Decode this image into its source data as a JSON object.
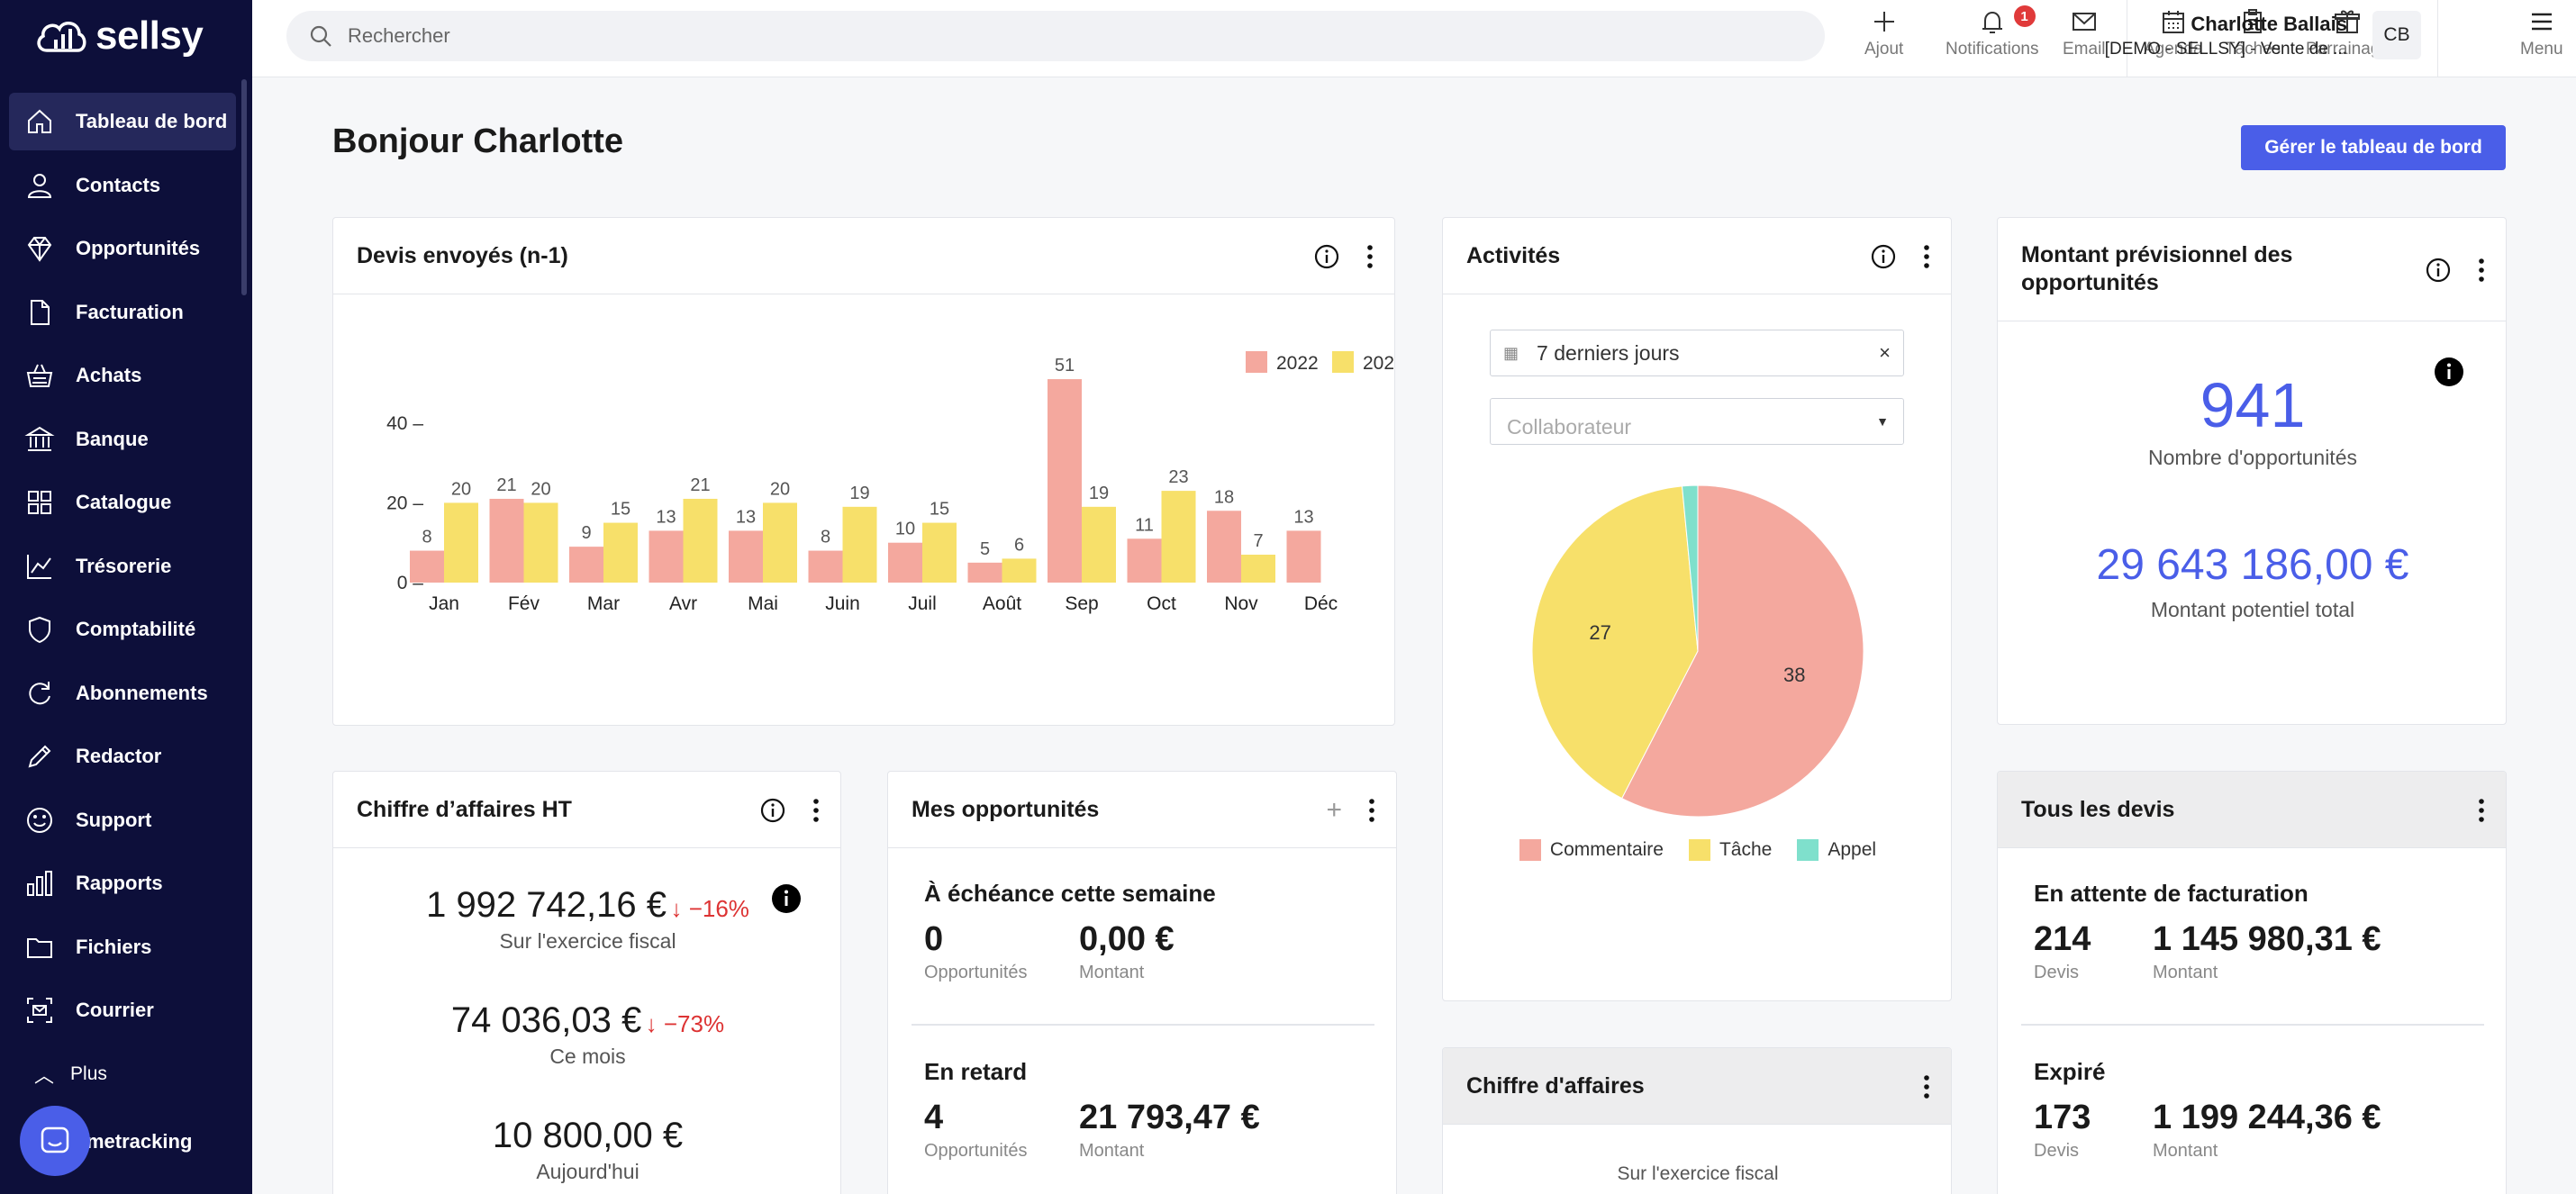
{
  "app": {
    "logo": "sellsy"
  },
  "sidebar": {
    "items": [
      {
        "label": "Tableau de bord",
        "icon": "home-icon",
        "active": true
      },
      {
        "label": "Contacts",
        "icon": "user-icon"
      },
      {
        "label": "Opportunités",
        "icon": "diamond-icon"
      },
      {
        "label": "Facturation",
        "icon": "document-icon"
      },
      {
        "label": "Achats",
        "icon": "basket-icon"
      },
      {
        "label": "Banque",
        "icon": "bank-icon"
      },
      {
        "label": "Catalogue",
        "icon": "grid-icon"
      },
      {
        "label": "Trésorerie",
        "icon": "trend-icon"
      },
      {
        "label": "Comptabilité",
        "icon": "shield-icon"
      },
      {
        "label": "Abonnements",
        "icon": "refresh-icon"
      },
      {
        "label": "Redactor",
        "icon": "pen-icon"
      },
      {
        "label": "Support",
        "icon": "smiley-icon"
      },
      {
        "label": "Rapports",
        "icon": "bar-chart-icon"
      },
      {
        "label": "Fichiers",
        "icon": "folder-icon"
      },
      {
        "label": "Courrier",
        "icon": "mail-scan-icon"
      }
    ],
    "plus_label": "Plus",
    "timetracking_label": "metracking"
  },
  "topbar": {
    "search_placeholder": "Rechercher",
    "actions": [
      {
        "label": "Ajout",
        "icon": "plus-icon"
      },
      {
        "label": "Notifications",
        "icon": "bell-icon",
        "badge": "1"
      },
      {
        "label": "Email",
        "icon": "envelope-icon"
      },
      {
        "label": "Agenda",
        "icon": "calendar-icon"
      },
      {
        "label": "Tâches",
        "icon": "clipboard-icon"
      },
      {
        "label": "Parrainage",
        "icon": "gift-icon"
      }
    ],
    "user_name": "Charlotte Ballais",
    "user_org": "[DEMO - SELLSY] - Vente de ...",
    "avatar_initials": "CB",
    "menu_label": "Menu"
  },
  "main": {
    "greeting": "Bonjour Charlotte",
    "manage_button": "Gérer le tableau de bord"
  },
  "devis_card": {
    "title": "Devis envoyés (n-1)"
  },
  "chart_data": [
    {
      "type": "bar",
      "title": "Devis envoyés (n-1)",
      "categories": [
        "Jan",
        "Fév",
        "Mar",
        "Avr",
        "Mai",
        "Juin",
        "Juil",
        "Août",
        "Sep",
        "Oct",
        "Nov",
        "Déc"
      ],
      "series": [
        {
          "name": "2022",
          "color": "#f4a89e",
          "values": [
            8,
            21,
            9,
            13,
            13,
            8,
            10,
            5,
            51,
            11,
            18,
            13
          ]
        },
        {
          "name": "202",
          "color": "#f7e06a",
          "values": [
            20,
            20,
            15,
            21,
            20,
            19,
            15,
            6,
            19,
            23,
            7,
            null
          ]
        }
      ],
      "y_ticks": [
        "0",
        "20",
        "40"
      ],
      "ylim": [
        0,
        55
      ],
      "legend": "top-right"
    },
    {
      "type": "pie",
      "title": "Activités",
      "slices": [
        {
          "name": "Commentaire",
          "value": 38,
          "color": "#f4a89e"
        },
        {
          "name": "Tâche",
          "value": 27,
          "color": "#f7e06a"
        },
        {
          "name": "Appel",
          "value": 1,
          "color": "#7fe0cc"
        }
      ]
    }
  ],
  "activites_card": {
    "title": "Activités",
    "date_filter": "7 derniers jours",
    "collaborator_placeholder": "Collaborateur"
  },
  "forecast_card": {
    "title_line1": "Montant prévisionnel des",
    "title_line2": "opportunités",
    "count": "941",
    "count_label": "Nombre d'opportunités",
    "amount": "29 643 186,00 €",
    "amount_label": "Montant potentiel total"
  },
  "ca_ht_card": {
    "title": "Chiffre d’affaires HT",
    "rows": [
      {
        "value": "1 992 742,16 €",
        "delta": "−16%",
        "label": "Sur l'exercice fiscal"
      },
      {
        "value": "74 036,03 €",
        "delta": "−73%",
        "label": "Ce mois"
      },
      {
        "value": "10 800,00 €",
        "delta": "",
        "label": "Aujourd'hui"
      }
    ]
  },
  "opps_card": {
    "title": "Mes opportunités",
    "section1_title": "À échéance cette semaine",
    "section1_count": "0",
    "section1_count_label": "Opportunités",
    "section1_amount": "0,00 €",
    "section1_amount_label": "Montant",
    "section2_title": "En retard",
    "section2_count": "4",
    "section2_count_label": "Opportunités",
    "section2_amount": "21 793,47 €",
    "section2_amount_label": "Montant"
  },
  "devis_all_card": {
    "title": "Tous les devis",
    "section1_title": "En attente de facturation",
    "section1_count": "214",
    "section1_count_label": "Devis",
    "section1_amount": "1 145 980,31 €",
    "section1_amount_label": "Montant",
    "section2_title": "Expiré",
    "section2_count": "173",
    "section2_count_label": "Devis",
    "section2_amount": "1 199 244,36 €",
    "section2_amount_label": "Montant"
  },
  "ca_card": {
    "title": "Chiffre d'affaires",
    "sub": "Sur l'exercice fiscal"
  }
}
